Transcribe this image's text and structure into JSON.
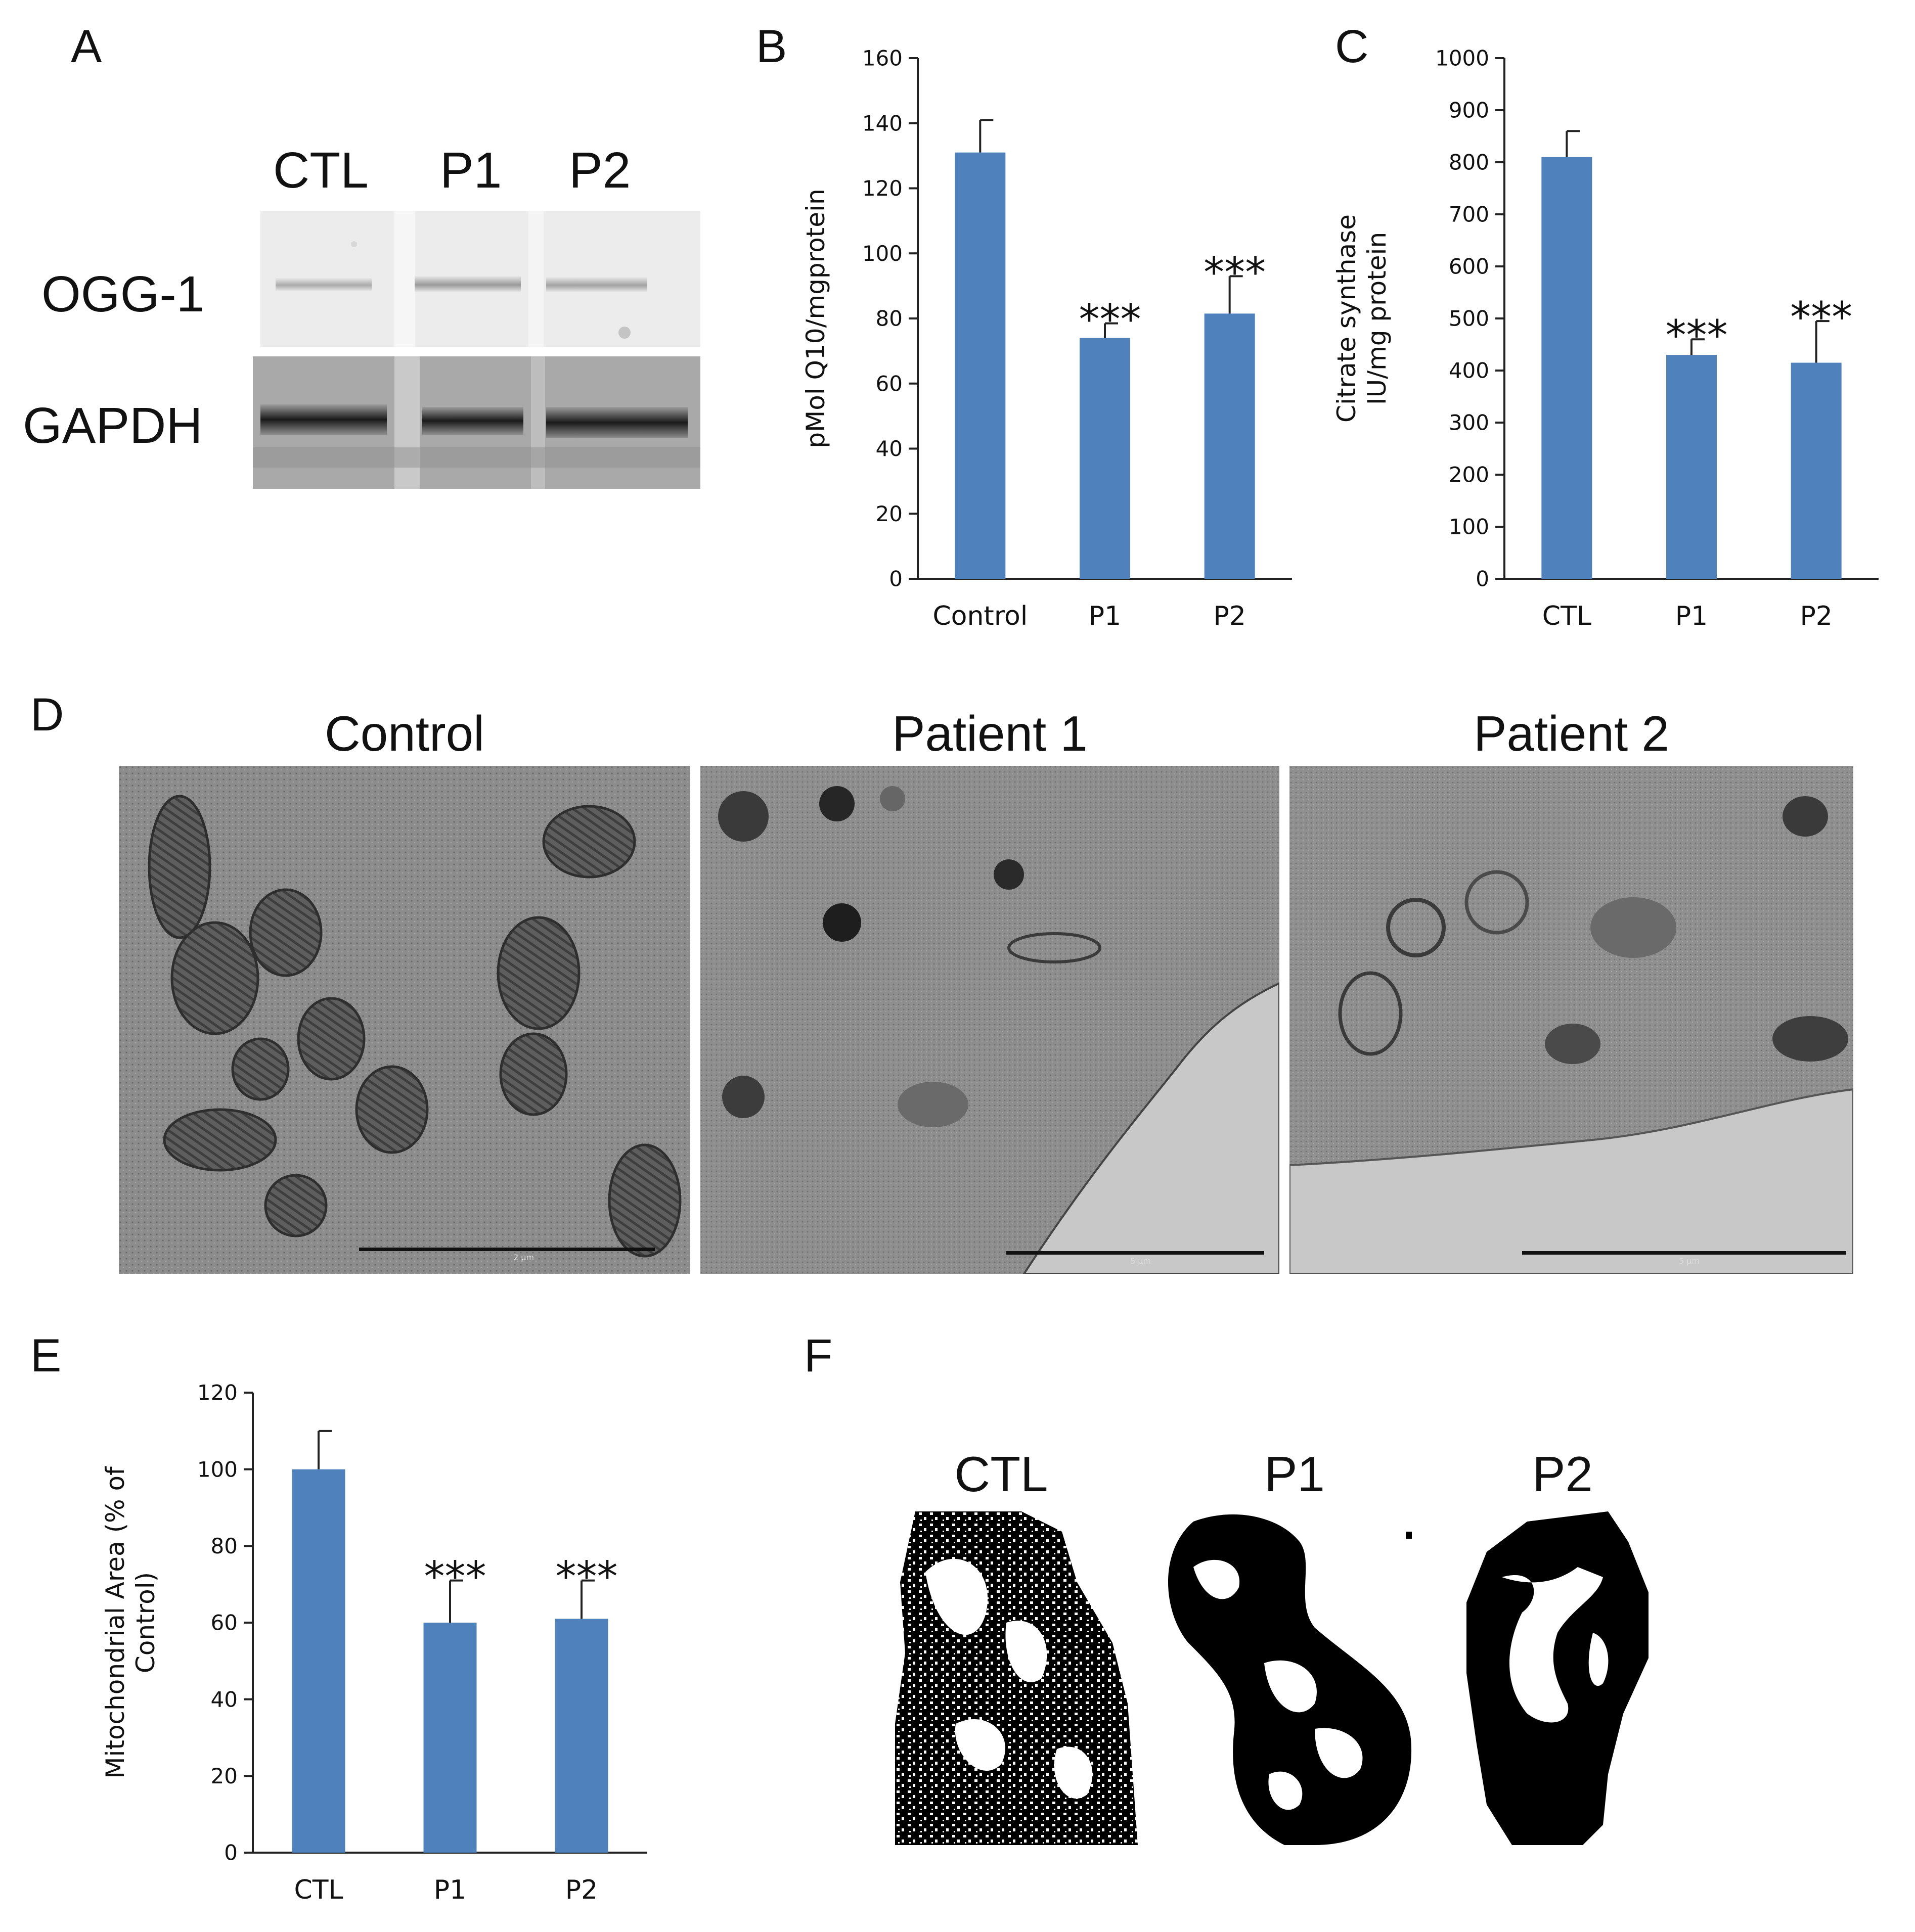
{
  "panels": {
    "A": {
      "letter": "A",
      "lanes": [
        "CTL",
        "P1",
        "P2"
      ],
      "rows": [
        "OGG-1",
        "GAPDH"
      ]
    },
    "D": {
      "letter": "D",
      "titles": [
        "Control",
        "Patient 1",
        "Patient 2"
      ],
      "scalebars": [
        "2 µm",
        "5 µm",
        "5 µm"
      ]
    },
    "F": {
      "letter": "F",
      "titles": [
        "CTL",
        "P1",
        "P2"
      ]
    }
  },
  "colors": {
    "bar": "#4f81bd",
    "axis": "#222222"
  },
  "chart_data": [
    {
      "id": "B",
      "letter": "B",
      "type": "bar",
      "categories": [
        "Control",
        "P1",
        "P2"
      ],
      "values": [
        131,
        74,
        81.5
      ],
      "errors": [
        10,
        4.5,
        11.5
      ],
      "annotations": [
        "",
        "***",
        "***"
      ],
      "ylabel": "pMol Q10/mgprotein",
      "xlabel": "",
      "ylim": [
        0,
        160
      ],
      "yticks": [
        0,
        20,
        40,
        60,
        80,
        100,
        120,
        140,
        160
      ],
      "grid": false
    },
    {
      "id": "C",
      "letter": "C",
      "type": "bar",
      "categories": [
        "CTL",
        "P1",
        "P2"
      ],
      "values": [
        810,
        430,
        415
      ],
      "errors": [
        50,
        30,
        80
      ],
      "annotations": [
        "",
        "***",
        "***"
      ],
      "ylabel": [
        "Citrate synthase",
        "IU/mg protein"
      ],
      "xlabel": "",
      "ylim": [
        0,
        1000
      ],
      "yticks": [
        0,
        100,
        200,
        300,
        400,
        500,
        600,
        700,
        800,
        900,
        1000
      ],
      "grid": false
    },
    {
      "id": "E",
      "letter": "E",
      "type": "bar",
      "categories": [
        "CTL",
        "P1",
        "P2"
      ],
      "values": [
        100,
        60,
        61
      ],
      "errors": [
        10,
        11,
        10
      ],
      "annotations": [
        "",
        "***",
        "***"
      ],
      "ylabel": [
        "Mitochondrial Area (% of",
        "Control)"
      ],
      "xlabel": "",
      "ylim": [
        0,
        120
      ],
      "yticks": [
        0,
        20,
        40,
        60,
        80,
        100,
        120
      ],
      "grid": false
    }
  ]
}
